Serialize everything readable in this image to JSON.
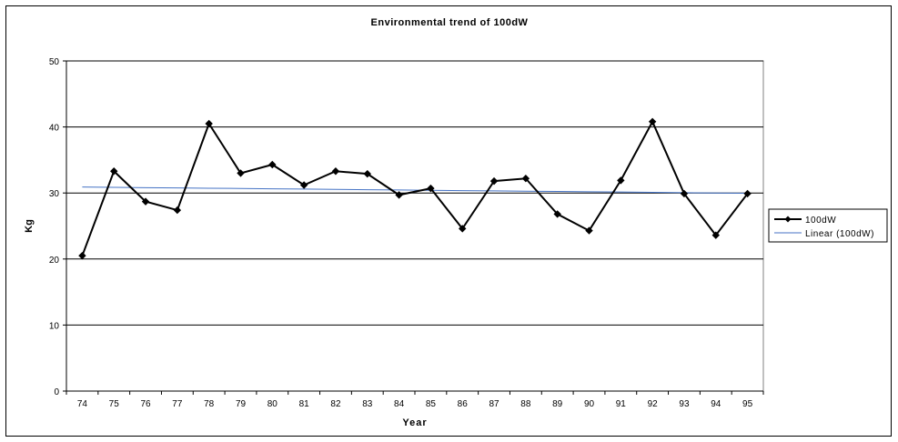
{
  "chart_data": {
    "type": "line",
    "title": "Environmental trend of 100dW",
    "xlabel": "Year",
    "ylabel": "Kg",
    "ylim": [
      0,
      50
    ],
    "yticks": [
      0,
      10,
      20,
      30,
      40,
      50
    ],
    "grid": true,
    "legend_position": "right",
    "categories": [
      "74",
      "75",
      "76",
      "77",
      "78",
      "79",
      "80",
      "81",
      "82",
      "83",
      "84",
      "85",
      "86",
      "87",
      "88",
      "89",
      "90",
      "91",
      "92",
      "93",
      "94",
      "95"
    ],
    "series": [
      {
        "name": "100dW",
        "color": "#000000",
        "marker": "diamond",
        "values": [
          20.5,
          33.3,
          28.7,
          27.4,
          40.5,
          33.0,
          34.3,
          31.2,
          33.3,
          32.9,
          29.7,
          30.7,
          24.6,
          31.8,
          32.2,
          26.8,
          24.3,
          31.9,
          40.8,
          29.9,
          23.6,
          29.9
        ]
      },
      {
        "name": "Linear (100dW)",
        "color": "#4472C4",
        "marker": "none",
        "values": [
          30.9,
          30.86,
          30.81,
          30.77,
          30.72,
          30.68,
          30.63,
          30.59,
          30.54,
          30.5,
          30.45,
          30.41,
          30.36,
          30.32,
          30.27,
          30.23,
          30.18,
          30.14,
          30.09,
          30.05,
          30.0,
          29.96
        ]
      }
    ]
  }
}
